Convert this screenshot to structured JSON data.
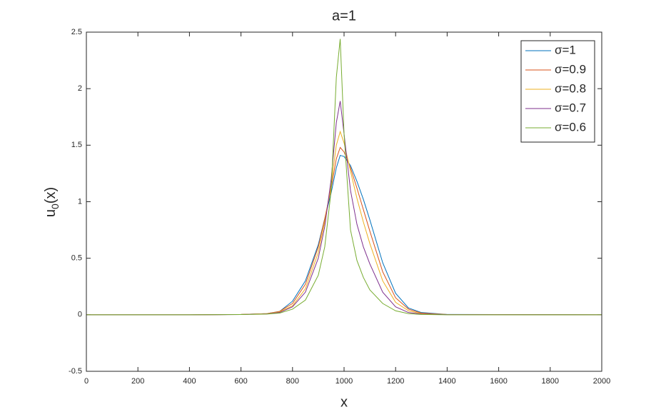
{
  "chart_data": {
    "type": "line",
    "title": "a=1",
    "xlabel": "x",
    "ylabel": [
      "u",
      "0",
      "(x)"
    ],
    "x": [
      0,
      400,
      600,
      700,
      750,
      800,
      850,
      900,
      925,
      950,
      970,
      985,
      1000,
      1025,
      1050,
      1075,
      1100,
      1150,
      1200,
      1250,
      1300,
      1400,
      2000
    ],
    "series": [
      {
        "name": "σ=1",
        "color": "#0072BD",
        "values": [
          0,
          0,
          0.003,
          0.01,
          0.03,
          0.12,
          0.3,
          0.62,
          0.85,
          1.08,
          1.3,
          1.41,
          1.4,
          1.32,
          1.18,
          1.02,
          0.84,
          0.46,
          0.19,
          0.06,
          0.02,
          0.003,
          0
        ]
      },
      {
        "name": "σ=0.9",
        "color": "#D95319",
        "values": [
          0,
          0,
          0.003,
          0.01,
          0.03,
          0.1,
          0.27,
          0.6,
          0.85,
          1.12,
          1.38,
          1.48,
          1.44,
          1.3,
          1.12,
          0.93,
          0.74,
          0.38,
          0.15,
          0.05,
          0.015,
          0.002,
          0
        ]
      },
      {
        "name": "σ=0.8",
        "color": "#EDB120",
        "values": [
          0,
          0,
          0.003,
          0.01,
          0.025,
          0.08,
          0.23,
          0.55,
          0.82,
          1.15,
          1.5,
          1.62,
          1.52,
          1.27,
          1.03,
          0.82,
          0.63,
          0.3,
          0.11,
          0.035,
          0.01,
          0.002,
          0
        ]
      },
      {
        "name": "σ=0.7",
        "color": "#7E2F8E",
        "values": [
          0,
          0,
          0.002,
          0.008,
          0.02,
          0.07,
          0.2,
          0.5,
          0.78,
          1.2,
          1.7,
          1.89,
          1.6,
          1.1,
          0.8,
          0.6,
          0.45,
          0.2,
          0.07,
          0.02,
          0.006,
          0.001,
          0
        ]
      },
      {
        "name": "σ=0.6",
        "color": "#77AC30",
        "values": [
          0,
          0,
          0.002,
          0.006,
          0.015,
          0.05,
          0.13,
          0.35,
          0.6,
          1.1,
          2.1,
          2.44,
          1.6,
          0.75,
          0.48,
          0.33,
          0.22,
          0.1,
          0.035,
          0.01,
          0.003,
          0,
          0
        ]
      }
    ],
    "xlim": [
      0,
      2000
    ],
    "xticks": [
      0,
      200,
      400,
      600,
      800,
      1000,
      1200,
      1400,
      1600,
      1800,
      2000
    ],
    "ylim": [
      -0.5,
      2.5
    ],
    "yticks": [
      -0.5,
      0,
      0.5,
      1,
      1.5,
      2,
      2.5
    ],
    "grid": false,
    "legend": "upper-right"
  }
}
